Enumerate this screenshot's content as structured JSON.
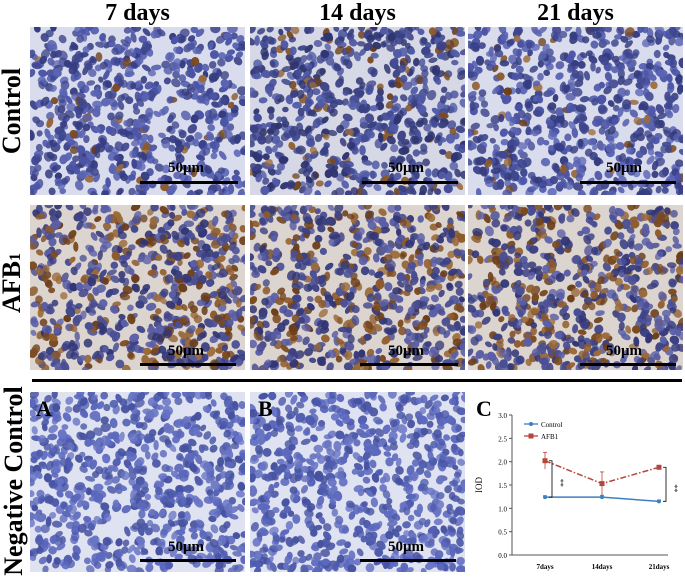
{
  "columns": [
    "7 days",
    "14 days",
    "21 days"
  ],
  "rows": [
    "Control",
    "AFB1",
    "Negative Control"
  ],
  "scale_bar_label": "50μm",
  "panel_letters": {
    "a": "A",
    "b": "B",
    "c": "C"
  },
  "colors": {
    "nuclei_blue": "#4a55a8",
    "stain_brown": "#8a5a2a",
    "background": "#e9ebf3"
  },
  "chart_data": {
    "type": "line",
    "categories": [
      "7days",
      "14days",
      "21days"
    ],
    "ylabel": "IOD",
    "xlabel": "",
    "ylim": [
      0.0,
      3.0
    ],
    "yticks": [
      "0.0",
      "0.5",
      "1.0",
      "1.5",
      "2.0",
      "2.5",
      "3.0"
    ],
    "series": [
      {
        "name": "Control",
        "values": [
          1.24,
          1.24,
          1.15
        ],
        "errors": [
          0.03,
          0.04,
          0.03
        ],
        "color": "#3d7fc1"
      },
      {
        "name": "AFB1",
        "values": [
          2.02,
          1.53,
          1.88
        ],
        "errors": [
          0.18,
          0.25,
          0.03
        ],
        "color": "#b5463e"
      }
    ],
    "significance": "**",
    "legend": "top-left"
  }
}
